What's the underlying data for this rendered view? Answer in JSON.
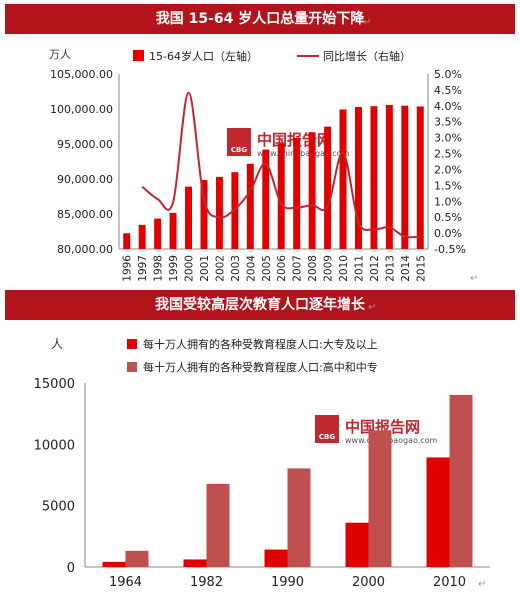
{
  "banner1": {
    "title": "我国 15-64 岁人口总量开始下降"
  },
  "banner2": {
    "title": "我国受较高层次教育人口逐年增长"
  },
  "watermark": {
    "cn": "中国报告网",
    "url": "www.chinabaogao.com",
    "logo": "CBG"
  },
  "colors": {
    "red": "#e00000",
    "darkred": "#c0504d",
    "line": "#c0282e",
    "banner": "#b3141c"
  },
  "chart_data": [
    {
      "type": "bar",
      "ylabel": "万人",
      "categories": [
        "1996",
        "1997",
        "1998",
        "1999",
        "2000",
        "2001",
        "2002",
        "2003",
        "2004",
        "2005",
        "2006",
        "2007",
        "2008",
        "2009",
        "2010",
        "2011",
        "2012",
        "2013",
        "2014",
        "2015"
      ],
      "series": [
        {
          "name": "15-64岁人口（左轴）",
          "axis": "left",
          "type": "bar",
          "values": [
            82245,
            83448,
            84338,
            85157,
            88910,
            89849,
            90302,
            90976,
            92184,
            94197,
            95068,
            95833,
            96680,
            97484,
            99938,
            100283,
            100403,
            100582,
            100469,
            100361
          ]
        },
        {
          "name": "同比增长（右轴）",
          "axis": "right",
          "type": "line",
          "values": [
            null,
            1.46,
            1.07,
            0.97,
            4.41,
            1.06,
            0.5,
            0.75,
            1.33,
            2.18,
            0.92,
            0.8,
            0.88,
            0.83,
            2.52,
            0.35,
            0.12,
            0.18,
            -0.11,
            -0.11
          ]
        }
      ],
      "ylim": [
        80000,
        105000
      ],
      "yticks": [
        "80,000.00",
        "85,000.00",
        "90,000.00",
        "95,000.00",
        "100,000.00",
        "105,000.00"
      ],
      "y2lim": [
        -0.5,
        5.0
      ],
      "y2ticks": [
        "-0.5%",
        "0.0%",
        "0.5%",
        "1.0%",
        "1.5%",
        "2.0%",
        "2.5%",
        "3.0%",
        "3.5%",
        "4.0%",
        "4.5%",
        "5.0%"
      ],
      "legend": "top"
    },
    {
      "type": "bar",
      "ylabel": "人",
      "categories": [
        "1964",
        "1982",
        "1990",
        "2000",
        "2010"
      ],
      "series": [
        {
          "name": "每十万人拥有的各种受教育程度人口:大专及以上",
          "values": [
            416,
            615,
            1422,
            3611,
            8930
          ]
        },
        {
          "name": "每十万人拥有的各种受教育程度人口:高中和中专",
          "values": [
            1319,
            6779,
            8039,
            11146,
            14032
          ]
        }
      ],
      "ylim": [
        0,
        15000
      ],
      "yticks": [
        "0",
        "5000",
        "10000",
        "15000"
      ],
      "legend": "top"
    }
  ]
}
